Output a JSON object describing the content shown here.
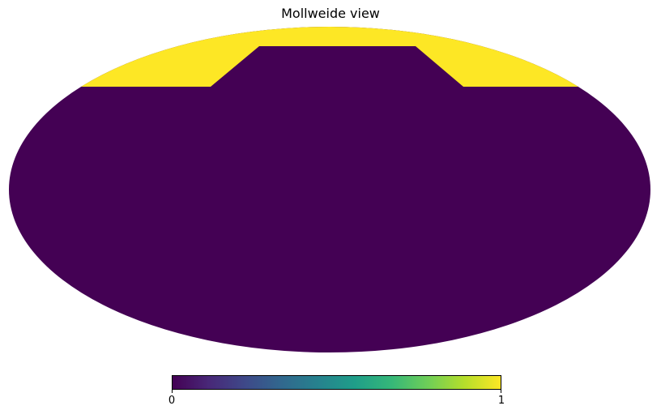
{
  "title": "Mollweide view",
  "map": {
    "projection": "mollweide",
    "background_value": 0,
    "highlight_value": 1,
    "colors": {
      "low": "#440154",
      "high": "#fde725"
    }
  },
  "colorbar": {
    "min_label": "0",
    "max_label": "1",
    "colormap": "viridis",
    "stops": [
      "#440154",
      "#482878",
      "#3e4989",
      "#31688e",
      "#26828e",
      "#1f9e89",
      "#35b779",
      "#6ece58",
      "#b5de2b",
      "#fde725"
    ]
  }
}
